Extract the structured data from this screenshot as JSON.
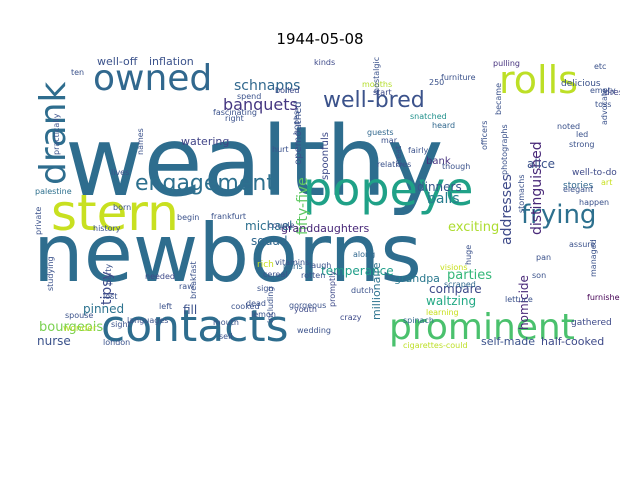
{
  "title": "1944-05-08",
  "words": [
    {
      "text": "wealthy",
      "color": "#2e6d8e"
    },
    {
      "text": "newborns",
      "color": "#2e6d8e"
    },
    {
      "text": "contacts",
      "color": "#2e6d8e"
    },
    {
      "text": "popeye",
      "color": "#1fa187"
    },
    {
      "text": "prominent",
      "color": "#4ac16d"
    },
    {
      "text": "stern",
      "color": "#c8e020"
    },
    {
      "text": "rolls",
      "color": "#bddf26"
    },
    {
      "text": "owned",
      "color": "#31688e"
    },
    {
      "text": "drank",
      "color": "#2e6d8e"
    },
    {
      "text": "engagement",
      "color": "#2d708e"
    },
    {
      "text": "frying",
      "color": "#2d708e"
    },
    {
      "text": "well-bred",
      "color": "#3b528b"
    },
    {
      "text": "banquets",
      "color": "#453781"
    },
    {
      "text": "distinguished",
      "color": "#482878"
    },
    {
      "text": "schnapps",
      "color": "#31688e"
    },
    {
      "text": "fifty-five",
      "color": "#5ec962"
    },
    {
      "text": "granddaughters",
      "color": "#482878"
    },
    {
      "text": "michael",
      "color": "#2d708e"
    },
    {
      "text": "squad",
      "color": "#31688e"
    },
    {
      "text": "opemouthed",
      "color": "#3b528b"
    },
    {
      "text": "spoonfuls",
      "color": "#3e4a89"
    },
    {
      "text": "addresses",
      "color": "#3e4a89"
    },
    {
      "text": "balls",
      "color": "#287d8e"
    },
    {
      "text": "exciting",
      "color": "#addc30"
    },
    {
      "text": "dinners",
      "color": "#38588c"
    },
    {
      "text": "alice",
      "color": "#3b528b"
    },
    {
      "text": "parties",
      "color": "#35b779"
    },
    {
      "text": "temperance",
      "color": "#1f9e89"
    },
    {
      "text": "grandpa",
      "color": "#2a788e"
    },
    {
      "text": "millionaire",
      "color": "#2c728e"
    },
    {
      "text": "compare",
      "color": "#3e4a89"
    },
    {
      "text": "homicide",
      "color": "#482878"
    },
    {
      "text": "waltzing",
      "color": "#22a884"
    },
    {
      "text": "tipsy",
      "color": "#3e4a89"
    },
    {
      "text": "pinned",
      "color": "#2c728e"
    },
    {
      "text": "fill",
      "color": "#3b528b"
    },
    {
      "text": "bourgeois",
      "color": "#7ad151"
    },
    {
      "text": "nurse",
      "color": "#3b528b"
    },
    {
      "text": "self-made",
      "color": "#3b528b"
    },
    {
      "text": "half-cooked",
      "color": "#3e4a89"
    },
    {
      "text": "well-off",
      "color": "#3b528b"
    },
    {
      "text": "inflation",
      "color": "#3b528b"
    },
    {
      "text": "watering",
      "color": "#414487"
    },
    {
      "text": "bank",
      "color": "#46327e"
    },
    {
      "text": "wonder",
      "color": "#b5de2b"
    },
    {
      "text": "languages",
      "color": "#3b528b"
    },
    {
      "text": "cigarettes-could",
      "color": "#bddf26"
    },
    {
      "text": "gathered",
      "color": "#3e4a89"
    },
    {
      "text": "furnished",
      "color": "#440154"
    },
    {
      "text": "well-to-do",
      "color": "#3e4a89"
    },
    {
      "text": "stories",
      "color": "#31688e"
    },
    {
      "text": "delicious",
      "color": "#3b528b"
    },
    {
      "text": "dresses",
      "color": "#414487"
    },
    {
      "text": "snatched",
      "color": "#21918c"
    },
    {
      "text": "heard",
      "color": "#31688e"
    },
    {
      "text": "fairly",
      "color": "#3b528b"
    },
    {
      "text": "guests",
      "color": "#31688e"
    },
    {
      "text": "mouths",
      "color": "#b5de2b"
    },
    {
      "text": "start",
      "color": "#3e4a89"
    },
    {
      "text": "boiled",
      "color": "#3e4a89"
    },
    {
      "text": "kinds",
      "color": "#3e4a89"
    },
    {
      "text": "pulling",
      "color": "#46327e"
    },
    {
      "text": "cereal",
      "color": "#3b528b"
    },
    {
      "text": "paris",
      "color": "#31688e"
    },
    {
      "text": "rich",
      "color": "#c8e020"
    },
    {
      "text": "couple",
      "color": "#3b528b"
    },
    {
      "text": "frankfurt",
      "color": "#3b528b"
    },
    {
      "text": "palestine",
      "color": "#2d708e"
    },
    {
      "text": "private",
      "color": "#3b528b"
    },
    {
      "text": "history",
      "color": "#3b528b"
    },
    {
      "text": "needed",
      "color": "#3e4a89"
    },
    {
      "text": "laugh",
      "color": "#3b528b"
    },
    {
      "text": "youth",
      "color": "#3e4a89"
    },
    {
      "text": "including",
      "color": "#3b528b"
    },
    {
      "text": "dutch",
      "color": "#3b528b"
    },
    {
      "text": "along",
      "color": "#31688e"
    },
    {
      "text": "promptly",
      "color": "#3e4a89"
    },
    {
      "text": "scraped",
      "color": "#31688e"
    },
    {
      "text": "visions",
      "color": "#c8e020"
    },
    {
      "text": "spinach",
      "color": "#31688e"
    },
    {
      "text": "wedding",
      "color": "#3b528b"
    },
    {
      "text": "crazy",
      "color": "#3e4a89"
    },
    {
      "text": "relatives",
      "color": "#3b528b"
    },
    {
      "text": "learning",
      "color": "#c8e020"
    },
    {
      "text": "lettuce",
      "color": "#3b528b"
    },
    {
      "text": "pan",
      "color": "#3b528b"
    },
    {
      "text": "son",
      "color": "#3b528b"
    },
    {
      "text": "elegant",
      "color": "#3b528b"
    },
    {
      "text": "happen",
      "color": "#3b528b"
    },
    {
      "text": "art",
      "color": "#c8e020"
    },
    {
      "text": "though",
      "color": "#3b528b"
    },
    {
      "text": "strong",
      "color": "#3b528b"
    },
    {
      "text": "led",
      "color": "#3b528b"
    },
    {
      "text": "noted",
      "color": "#3b528b"
    },
    {
      "text": "toss",
      "color": "#3b528b"
    },
    {
      "text": "empty",
      "color": "#3b528b"
    },
    {
      "text": "etc",
      "color": "#3b528b"
    },
    {
      "text": "spend",
      "color": "#3b528b"
    },
    {
      "text": "ten",
      "color": "#3b528b"
    },
    {
      "text": "lives",
      "color": "#3b528b"
    },
    {
      "text": "hurt",
      "color": "#3b528b"
    },
    {
      "text": "mar",
      "color": "#3b528b"
    },
    {
      "text": "250",
      "color": "#3b528b"
    },
    {
      "text": "sight",
      "color": "#3b528b"
    },
    {
      "text": "left",
      "color": "#3b528b"
    },
    {
      "text": "lost",
      "color": "#3b528b"
    },
    {
      "text": "sign",
      "color": "#3b528b"
    },
    {
      "text": "raw",
      "color": "#3b528b"
    },
    {
      "text": "begin",
      "color": "#3b528b"
    },
    {
      "text": "born",
      "color": "#3b528b"
    },
    {
      "text": "right",
      "color": "#3b528b"
    },
    {
      "text": "party",
      "color": "#3b528b"
    },
    {
      "text": "spouse",
      "color": "#3b528b"
    },
    {
      "text": "london",
      "color": "#3b528b"
    },
    {
      "text": "assure",
      "color": "#3b528b"
    },
    {
      "text": "officers",
      "color": "#3b528b"
    },
    {
      "text": "managed",
      "color": "#3b528b"
    },
    {
      "text": "advocate",
      "color": "#3b528b"
    },
    {
      "text": "became",
      "color": "#3b528b"
    },
    {
      "text": "huge",
      "color": "#3b528b"
    },
    {
      "text": "stomachs",
      "color": "#3b528b"
    },
    {
      "text": "fascinating",
      "color": "#3b528b"
    },
    {
      "text": "names",
      "color": "#3b528b"
    },
    {
      "text": "practically",
      "color": "#3b528b"
    },
    {
      "text": "studying",
      "color": "#3b528b"
    },
    {
      "text": "hopes",
      "color": "#3b528b"
    },
    {
      "text": "furniture",
      "color": "#3b528b"
    },
    {
      "text": "breakfast",
      "color": "#3b528b"
    },
    {
      "text": "photographs",
      "color": "#3b528b"
    },
    {
      "text": "vitamins",
      "color": "#3b528b"
    },
    {
      "text": "rotten",
      "color": "#3b528b"
    },
    {
      "text": "dead",
      "color": "#3b528b"
    },
    {
      "text": "gorgeous",
      "color": "#3b528b"
    },
    {
      "text": "cooked",
      "color": "#3b528b"
    },
    {
      "text": "mouth",
      "color": "#3b528b"
    },
    {
      "text": "sell",
      "color": "#3b528b"
    },
    {
      "text": "great",
      "color": "#3b528b"
    },
    {
      "text": "nostalgic",
      "color": "#3b528b"
    },
    {
      "text": "lemon",
      "color": "#3b528b"
    }
  ]
}
